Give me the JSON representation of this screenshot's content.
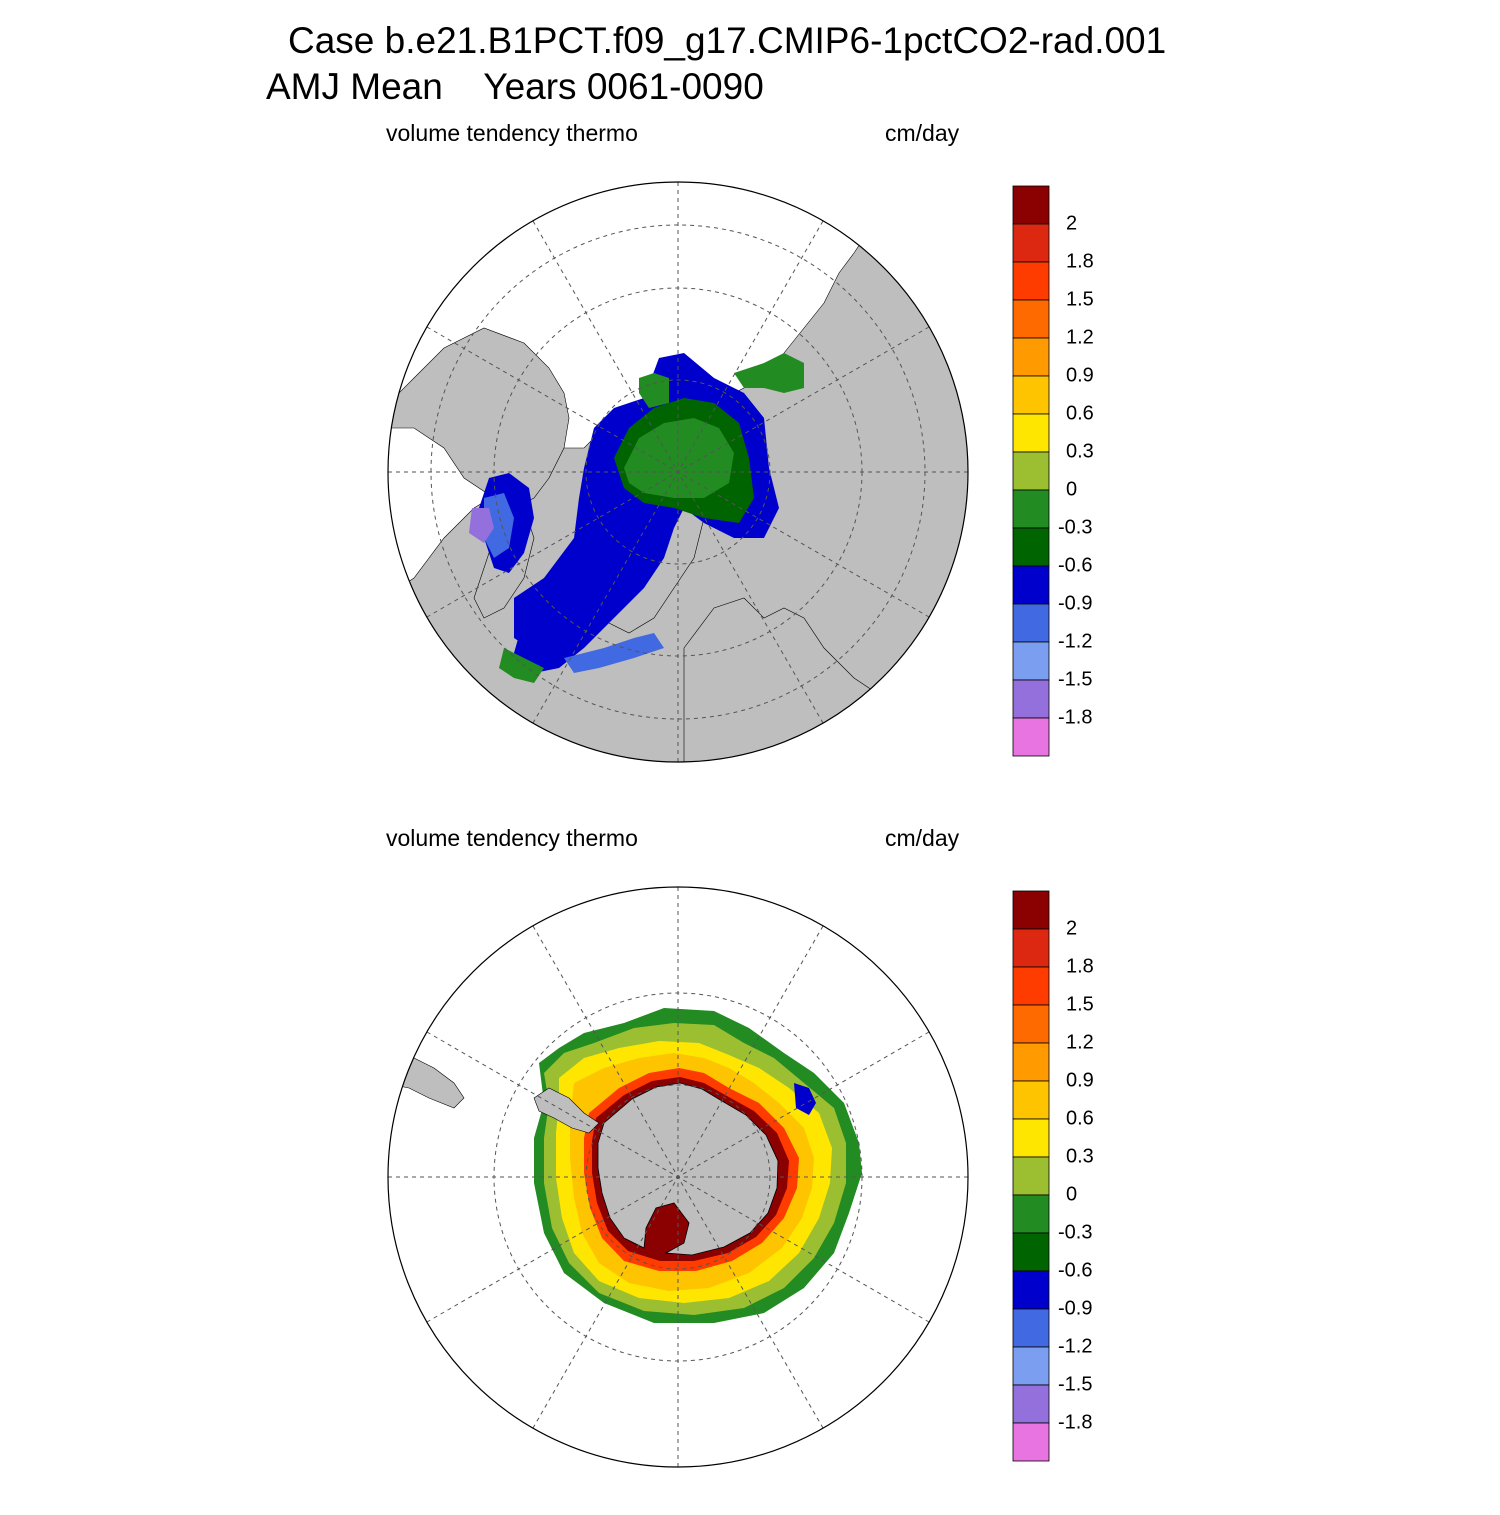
{
  "title": {
    "line1": "Case b.e21.B1PCT.f09_g17.CMIP6-1pctCO2-rad.001",
    "line2": "AMJ Mean    Years 0061-0090"
  },
  "panels": [
    {
      "id": "north",
      "hemisphere": "Arctic (north polar stereographic)",
      "left_label": "volume tendency thermo",
      "right_label": "cm/day"
    },
    {
      "id": "south",
      "hemisphere": "Antarctic (south polar stereographic)",
      "left_label": "volume tendency thermo",
      "right_label": "cm/day"
    }
  ],
  "colorbar": {
    "labels": [
      "2",
      "1.8",
      "1.5",
      "1.2",
      "0.9",
      "0.6",
      "0.3",
      "0",
      "-0.3",
      "-0.6",
      "-0.9",
      "-1.2",
      "-1.5",
      "-1.8"
    ],
    "colors": [
      "#8b0000",
      "#dc2810",
      "#ff3c00",
      "#ff6a00",
      "#ff9a00",
      "#ffc400",
      "#ffe600",
      "#9cbf32",
      "#228b22",
      "#006400",
      "#0000cd",
      "#4169e1",
      "#7b9ef0",
      "#9370db",
      "#e774e0"
    ]
  },
  "style": {
    "land": "#bebebe",
    "ocean": "#ffffff",
    "grid": "#555555"
  }
}
